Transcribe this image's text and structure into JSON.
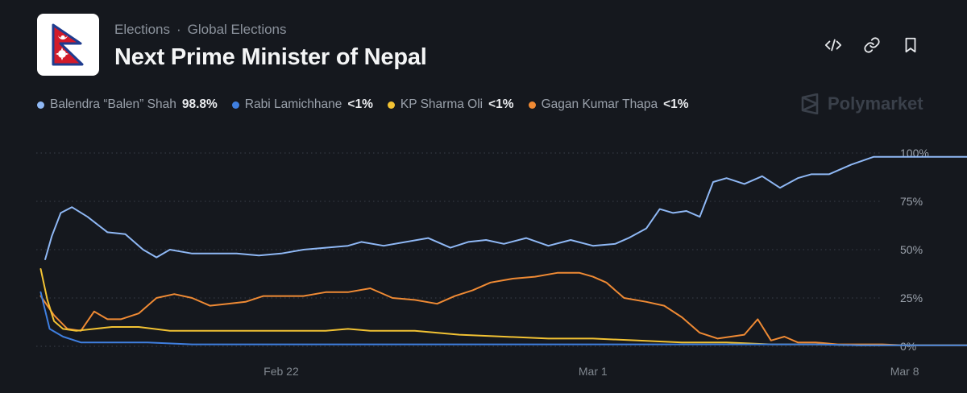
{
  "header": {
    "breadcrumb": [
      "Elections",
      "Global Elections"
    ],
    "title": "Next Prime Minister of Nepal"
  },
  "actions": [
    {
      "name": "embed-button",
      "icon": "code-icon"
    },
    {
      "name": "copy-link-button",
      "icon": "link-icon"
    },
    {
      "name": "bookmark-button",
      "icon": "bookmark-icon"
    }
  ],
  "brand": "Polymarket",
  "legend": [
    {
      "name": "Balendra “Balen” Shah",
      "value": "98.8%",
      "color": "#8fb8f5"
    },
    {
      "name": "Rabi Lamichhane",
      "value": "<1%",
      "color": "#3f7fe0"
    },
    {
      "name": "KP Sharma Oli",
      "value": "<1%",
      "color": "#f2c233"
    },
    {
      "name": "Gagan Kumar Thapa",
      "value": "<1%",
      "color": "#ef8a34"
    }
  ],
  "chart_data": {
    "type": "line",
    "x_ticks": [
      "Feb 22",
      "Mar 1",
      "Mar 8"
    ],
    "x_range_days": [
      -5.5,
      13.5
    ],
    "x_tick_days": [
      0,
      7,
      14
    ],
    "y_ticks": [
      "100%",
      "75%",
      "50%",
      "25%",
      "0%"
    ],
    "y_tick_values": [
      100,
      75,
      50,
      25,
      0
    ],
    "ylim": [
      0,
      100
    ],
    "grid": "horizontal-dotted",
    "series": [
      {
        "name": "Balendra “Balen” Shah",
        "color": "#8fb8f5",
        "x": [
          -5.3,
          -5.15,
          -4.95,
          -4.7,
          -4.35,
          -3.9,
          -3.5,
          -3.1,
          -2.8,
          -2.5,
          -2,
          -1.5,
          -1,
          -0.5,
          0,
          0.5,
          1,
          1.5,
          1.8,
          2.3,
          2.8,
          3.3,
          3.8,
          4.2,
          4.6,
          5,
          5.5,
          6,
          6.5,
          7,
          7.5,
          7.8,
          8.2,
          8.5,
          8.8,
          9.1,
          9.4,
          9.7,
          10,
          10.4,
          10.8,
          11.2,
          11.6,
          11.9,
          12.3,
          12.8,
          13.3,
          13.8,
          14.4,
          15,
          15.5,
          16,
          16.5,
          17,
          17.4
        ],
        "y": [
          45,
          57,
          69,
          72,
          67,
          59,
          58,
          50,
          46,
          50,
          48,
          48,
          48,
          47,
          48,
          50,
          51,
          52,
          54,
          52,
          54,
          56,
          51,
          54,
          55,
          53,
          56,
          52,
          55,
          52,
          53,
          56,
          61,
          71,
          69,
          70,
          67,
          85,
          87,
          84,
          88,
          82,
          87,
          89,
          89,
          94,
          98,
          98,
          98,
          98,
          98,
          98,
          98,
          98,
          98.8
        ]
      },
      {
        "name": "Rabi Lamichhane",
        "color": "#3f7fe0",
        "x": [
          -5.4,
          -5.2,
          -4.9,
          -4.5,
          -4,
          -3,
          -2,
          -1,
          0,
          1,
          2,
          3,
          4,
          5,
          6,
          7,
          8,
          9,
          10,
          11,
          12,
          13,
          14,
          15,
          16,
          17,
          17.4
        ],
        "y": [
          28,
          9,
          5,
          2,
          2,
          2,
          1,
          1,
          1,
          1,
          1,
          1,
          1,
          1,
          1,
          1,
          1,
          1,
          1,
          1,
          1,
          0.5,
          0.5,
          0.5,
          0.5,
          0.5,
          0.5
        ]
      },
      {
        "name": "KP Sharma Oli",
        "color": "#f2c233",
        "x": [
          -5.4,
          -5.25,
          -5.1,
          -4.9,
          -4.6,
          -4.2,
          -3.8,
          -3.2,
          -2.5,
          -2,
          -1,
          0,
          1,
          1.5,
          2,
          3,
          4,
          5,
          6,
          7,
          8,
          9,
          10,
          11,
          12,
          13,
          14,
          15,
          16,
          17,
          17.4
        ],
        "y": [
          40,
          24,
          13,
          9,
          8,
          9,
          10,
          10,
          8,
          8,
          8,
          8,
          8,
          9,
          8,
          8,
          6,
          5,
          4,
          4,
          3,
          2,
          2,
          1,
          1,
          0.5,
          0.5,
          0.5,
          0.5,
          0.5,
          0.5
        ]
      },
      {
        "name": "Gagan Kumar Thapa",
        "color": "#ef8a34",
        "x": [
          -5.4,
          -5.1,
          -4.8,
          -4.5,
          -4.2,
          -3.9,
          -3.6,
          -3.2,
          -2.8,
          -2.4,
          -2,
          -1.6,
          -1.2,
          -0.8,
          -0.4,
          0,
          0.5,
          1,
          1.5,
          2,
          2.5,
          3,
          3.5,
          3.9,
          4.3,
          4.7,
          5.2,
          5.7,
          6.2,
          6.7,
          7,
          7.3,
          7.7,
          8.2,
          8.6,
          9,
          9.4,
          9.8,
          10.1,
          10.4,
          10.7,
          11,
          11.3,
          11.6,
          12,
          12.5,
          13,
          13.5,
          14,
          15,
          16,
          17,
          17.4
        ],
        "y": [
          26,
          16,
          9,
          8,
          18,
          14,
          14,
          17,
          25,
          27,
          25,
          21,
          22,
          23,
          26,
          26,
          26,
          28,
          28,
          30,
          25,
          24,
          22,
          26,
          29,
          33,
          35,
          36,
          38,
          38,
          36,
          33,
          25,
          23,
          21,
          15,
          7,
          4,
          5,
          6,
          14,
          3,
          5,
          2,
          2,
          1,
          1,
          1,
          0.5,
          0.5,
          0.5,
          0.5,
          0.5
        ]
      }
    ]
  }
}
